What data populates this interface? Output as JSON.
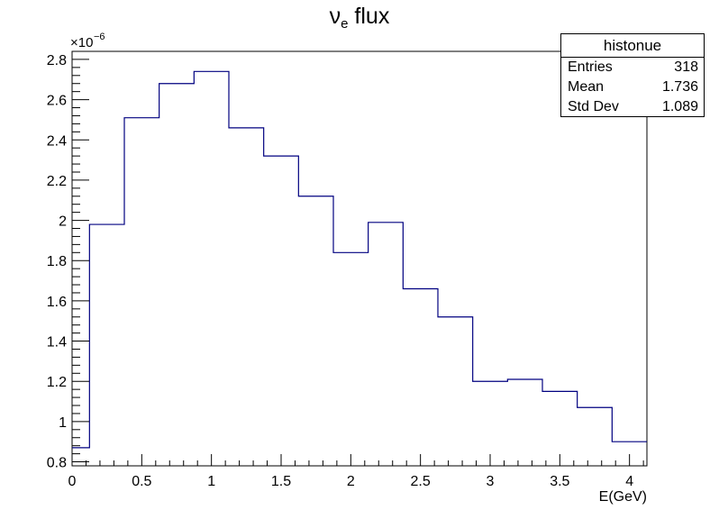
{
  "chart_data": {
    "type": "histogram",
    "title_main": "ν",
    "title_sub": "e",
    "title_rest": " flux",
    "xlabel": "E(GeV)",
    "ylabel": "",
    "y_multiplier": "×10",
    "y_exponent": "−6",
    "xlim": [
      0,
      4.125
    ],
    "ylim": [
      0.78,
      2.84
    ],
    "grid": false,
    "line_color": "#000080",
    "x_ticks": [
      0,
      0.5,
      1,
      1.5,
      2,
      2.5,
      3,
      3.5,
      4
    ],
    "x_tick_labels": [
      "0",
      "0.5",
      "1",
      "1.5",
      "2",
      "2.5",
      "3",
      "3.5",
      "4"
    ],
    "y_ticks": [
      0.8,
      1,
      1.2,
      1.4,
      1.6,
      1.8,
      2,
      2.2,
      2.4,
      2.6,
      2.8
    ],
    "y_tick_labels": [
      "0.8",
      "1",
      "1.2",
      "1.4",
      "1.6",
      "1.8",
      "2",
      "2.2",
      "2.4",
      "2.6",
      "2.8"
    ],
    "bin_edges": [
      0,
      0.125,
      0.375,
      0.625,
      0.875,
      1.125,
      1.375,
      1.625,
      1.875,
      2.125,
      2.375,
      2.625,
      2.875,
      3.125,
      3.375,
      3.625,
      3.875,
      4.125
    ],
    "values": [
      0.87,
      1.98,
      2.51,
      2.68,
      2.74,
      2.46,
      2.32,
      2.12,
      1.84,
      1.99,
      1.66,
      1.52,
      1.2,
      1.21,
      1.15,
      1.07,
      0.9
    ]
  },
  "stats": {
    "name": "histonue",
    "rows": [
      {
        "label": "Entries",
        "value": "318"
      },
      {
        "label": "Mean",
        "value": "1.736"
      },
      {
        "label": "Std Dev",
        "value": "1.089"
      }
    ]
  }
}
